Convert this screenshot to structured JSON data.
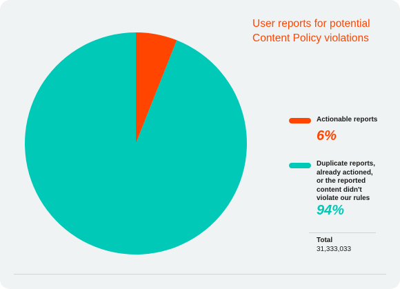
{
  "chart_data": {
    "type": "pie",
    "title": "User reports for potential\nContent Policy violations",
    "slices": [
      {
        "label": "Actionable reports",
        "value": 6,
        "display": "6%",
        "color": "#ff4500"
      },
      {
        "label": "Duplicate reports,\nalready actioned,\nor the reported\ncontent didn't\nviolate our rules",
        "value": 94,
        "display": "94%",
        "color": "#00c9b7"
      }
    ],
    "total_label": "Total",
    "total_value": "31,333,033",
    "legend_position": "right"
  }
}
